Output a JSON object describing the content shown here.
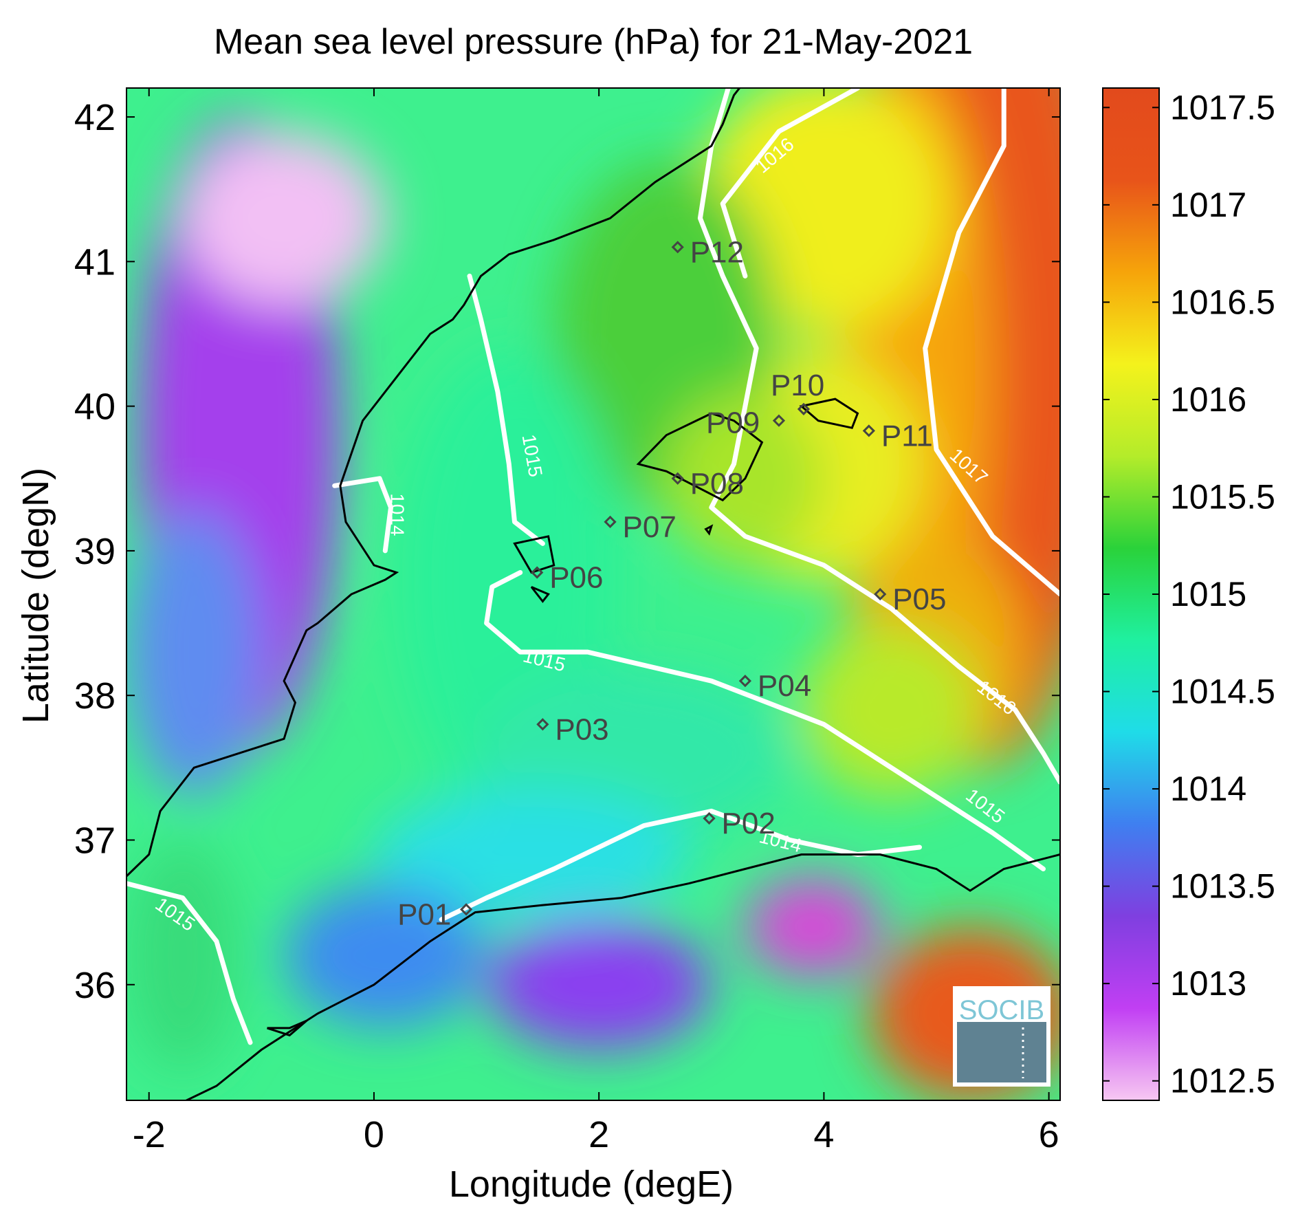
{
  "title": "Mean sea level pressure (hPa) for 21-May-2021",
  "xlabel": "Longitude (degE)",
  "ylabel": "Latitude (degN)",
  "logo_text": "SOCIB",
  "chart_data": {
    "type": "heatmap",
    "title": "Mean sea level pressure (hPa) for 21-May-2021",
    "xlabel": "Longitude (degE)",
    "ylabel": "Latitude (degN)",
    "xlim": [
      -2.2,
      6.1
    ],
    "ylim": [
      35.2,
      42.2
    ],
    "x_ticks": [
      -2,
      0,
      2,
      4,
      6
    ],
    "y_ticks": [
      36,
      37,
      38,
      39,
      40,
      41,
      42
    ],
    "x_tick_labels": [
      "-2",
      "0",
      "2",
      "4",
      "6"
    ],
    "y_tick_labels": [
      "36",
      "37",
      "38",
      "39",
      "40",
      "41",
      "42"
    ],
    "colorbar": {
      "min": 1012.4,
      "max": 1017.6,
      "ticks": [
        1012.5,
        1013,
        1013.5,
        1014,
        1014.5,
        1015,
        1015.5,
        1016,
        1016.5,
        1017,
        1017.5
      ],
      "tick_labels": [
        "1012.5",
        "1013",
        "1013.5",
        "1014",
        "1014.5",
        "1015",
        "1015.5",
        "1016",
        "1016.5",
        "1017",
        "1017.5"
      ],
      "colors": [
        "#f7c8f2",
        "#c13ff3",
        "#7f3fe0",
        "#3f7ff0",
        "#1fdce8",
        "#1ff0a0",
        "#2ad23a",
        "#b4ec2a",
        "#f4f21c",
        "#f6a40a",
        "#e8541a",
        "#e24a1c"
      ]
    },
    "stations": [
      {
        "name": "P01",
        "lon": 0.82,
        "lat": 36.52
      },
      {
        "name": "P02",
        "lon": 2.98,
        "lat": 37.15
      },
      {
        "name": "P03",
        "lon": 1.5,
        "lat": 37.8
      },
      {
        "name": "P04",
        "lon": 3.3,
        "lat": 38.1
      },
      {
        "name": "P05",
        "lon": 4.5,
        "lat": 38.7
      },
      {
        "name": "P06",
        "lon": 1.45,
        "lat": 38.85
      },
      {
        "name": "P07",
        "lon": 2.1,
        "lat": 39.2
      },
      {
        "name": "P08",
        "lon": 2.7,
        "lat": 39.5
      },
      {
        "name": "P09",
        "lon": 3.6,
        "lat": 39.9
      },
      {
        "name": "P10",
        "lon": 3.82,
        "lat": 39.98
      },
      {
        "name": "P11",
        "lon": 4.4,
        "lat": 39.83
      },
      {
        "name": "P12",
        "lon": 2.7,
        "lat": 41.1
      }
    ],
    "contour_labels": [
      "1014",
      "1014",
      "1015",
      "1015",
      "1015",
      "1015",
      "1016",
      "1016",
      "1017"
    ]
  }
}
